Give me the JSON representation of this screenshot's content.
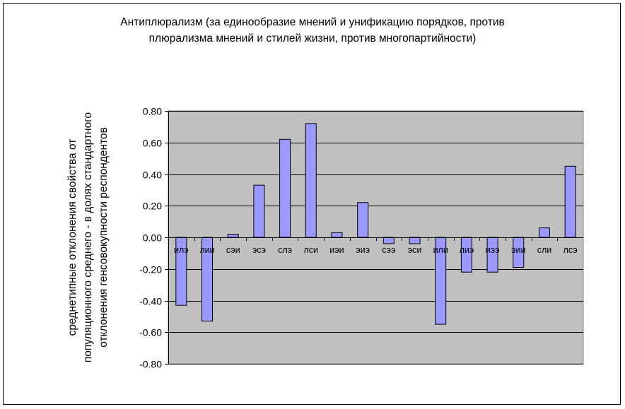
{
  "chart_data": {
    "type": "bar",
    "title_lines": [
      "Антиплюрализм  (за единообразие мнений и унификацию порядков, против",
      "плюрализма мнений и стилей жизни, против многопартийности)"
    ],
    "ylabel_lines": [
      "среднетипные отклонения свойства от",
      "популяционного среднего - в долях стандартного",
      "отклонения генсовокупности респондентов"
    ],
    "xlabel": "",
    "categories": [
      "илэ",
      "лии",
      "сэи",
      "эсэ",
      "слэ",
      "лси",
      "иэи",
      "эиэ",
      "сээ",
      "эси",
      "или",
      "лиэ",
      "иээ",
      "эии",
      "сли",
      "лсэ"
    ],
    "values": [
      -0.43,
      -0.53,
      0.02,
      0.33,
      0.62,
      0.72,
      0.03,
      0.22,
      -0.04,
      -0.04,
      -0.55,
      -0.22,
      -0.22,
      -0.19,
      0.06,
      0.45
    ],
    "ylim": [
      -0.8,
      0.8
    ],
    "yticks": [
      "0.80",
      "0.60",
      "0.40",
      "0.20",
      "0.00",
      "-0.20",
      "-0.40",
      "-0.60",
      "-0.80"
    ],
    "ytick_values": [
      0.8,
      0.6,
      0.4,
      0.2,
      0.0,
      -0.2,
      -0.4,
      -0.6,
      -0.8
    ],
    "grid": true,
    "legend": "none",
    "colors": {
      "plot_background": "#c0c0c0",
      "bar_fill": "#9999ff",
      "bar_stroke": "#000000",
      "grid": "#000000"
    }
  }
}
